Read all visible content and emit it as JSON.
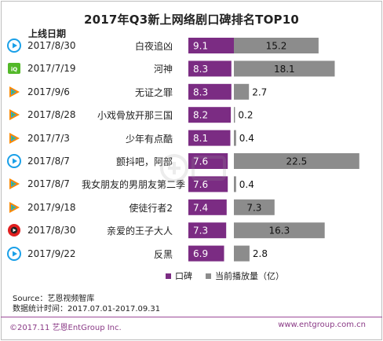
{
  "title": "2017年Q3新上网络剧口碑排名TOP10",
  "column_header": "上线日期",
  "rows": [
    {
      "date": "2017/8/30",
      "name": "白夜追凶",
      "platform_icon": "youku-icon",
      "platform_color": "#1aa0e8"
    },
    {
      "date": "2017/7/19",
      "name": "河神",
      "platform_icon": "iqiyi-icon",
      "platform_color": "#53b829"
    },
    {
      "date": "2017/9/6",
      "name": "无证之罪",
      "platform_icon": "tencent-video-icon",
      "platform_color": "#ff8a00"
    },
    {
      "date": "2017/8/28",
      "name": "小戏骨放开那三国",
      "platform_icon": "tencent-video-icon",
      "platform_color": "#ff8a00"
    },
    {
      "date": "2017/7/3",
      "name": "少年有点酷",
      "platform_icon": "tencent-video-icon",
      "platform_color": "#ff8a00"
    },
    {
      "date": "2017/8/7",
      "name": "颤抖吧，阿部",
      "platform_icon": "youku-icon",
      "platform_color": "#1aa0e8"
    },
    {
      "date": "2017/8/7",
      "name": "我女朋友的男朋友第二季",
      "platform_icon": "tencent-video-icon",
      "platform_color": "#ff8a00"
    },
    {
      "date": "2017/9/18",
      "name": "使徒行者2",
      "platform_icon": "tencent-video-icon",
      "platform_color": "#ff8a00"
    },
    {
      "date": "2017/8/30",
      "name": "亲爱的王子大人",
      "platform_icon": "mango-tv-icon",
      "platform_color": "#e02020"
    },
    {
      "date": "2017/9/22",
      "name": "反黑",
      "platform_icon": "youku-icon",
      "platform_color": "#1aa0e8"
    }
  ],
  "chart_data": {
    "type": "bar",
    "orientation": "horizontal",
    "layout": "diverging",
    "title": "2017年Q3新上网络剧口碑排名TOP10",
    "categories": [
      "白夜追凶",
      "河神",
      "无证之罪",
      "小戏骨放开那三国",
      "少年有点酷",
      "颤抖吧，阿部",
      "我女朋友的男朋友第二季",
      "使徒行者2",
      "亲爱的王子大人",
      "反黑"
    ],
    "series": [
      {
        "name": "口碑",
        "color": "#7b2c83",
        "values": [
          9.1,
          8.3,
          8.3,
          8.2,
          8.1,
          7.6,
          7.6,
          7.4,
          7.3,
          6.9
        ],
        "value_labels": [
          "9.1",
          "8.3",
          "8.3",
          "8.2",
          "8.1",
          "7.6",
          "7.6",
          "7.4",
          "7.3",
          "6.9"
        ]
      },
      {
        "name": "当前播放量（亿）",
        "color": "#8c8c8c",
        "values": [
          15.2,
          18.1,
          2.7,
          0.2,
          0.4,
          22.5,
          0.4,
          7.3,
          16.3,
          2.8
        ],
        "value_labels": [
          "15.2",
          "18.1",
          "2.7",
          "0.2",
          "0.4",
          "22.5",
          "0.4",
          "7.3",
          "16.3",
          "2.8"
        ]
      }
    ],
    "legend_position": "bottom-right",
    "grid": false
  },
  "legend": {
    "items": [
      {
        "label": "口碑",
        "color": "#7b2c83"
      },
      {
        "label": "当前播放量（亿）",
        "color": "#8c8c8c"
      }
    ]
  },
  "source": {
    "line1": "Source：艺恩视频智库",
    "line2": "数据统计时间：2017.07.01-2017.09.31"
  },
  "footer": {
    "copyright": "©2017.11 艺恩EntGroup Inc.",
    "website": "www.entgroup.com.cn",
    "accent_color": "#8a3a86"
  },
  "watermark_icon": "entgroup-watermark-icon"
}
